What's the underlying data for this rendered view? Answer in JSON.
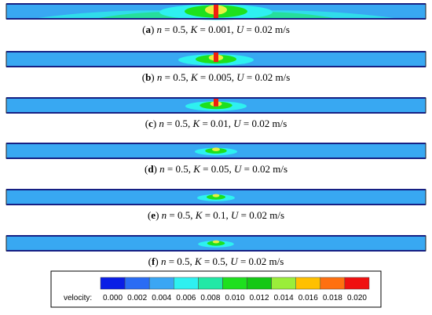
{
  "panels": [
    {
      "caption": [
        {
          "text": "(",
          "style": "normal"
        },
        {
          "text": "a",
          "style": "bold"
        },
        {
          "text": ") ",
          "style": "normal"
        },
        {
          "text": "n",
          "style": "italic"
        },
        {
          "text": " = 0.5, ",
          "style": "normal"
        },
        {
          "text": "K",
          "style": "italic"
        },
        {
          "text": " = 0.001, ",
          "style": "normal"
        },
        {
          "text": "U",
          "style": "italic"
        },
        {
          "text": " = 0.02 m/s",
          "style": "normal"
        }
      ]
    },
    {
      "caption": [
        {
          "text": "(",
          "style": "normal"
        },
        {
          "text": "b",
          "style": "bold"
        },
        {
          "text": ") ",
          "style": "normal"
        },
        {
          "text": "n",
          "style": "italic"
        },
        {
          "text": " = 0.5, ",
          "style": "normal"
        },
        {
          "text": "K",
          "style": "italic"
        },
        {
          "text": " = 0.005, ",
          "style": "normal"
        },
        {
          "text": "U",
          "style": "italic"
        },
        {
          "text": " = 0.02 m/s",
          "style": "normal"
        }
      ]
    },
    {
      "caption": [
        {
          "text": "(",
          "style": "normal"
        },
        {
          "text": "c",
          "style": "bold"
        },
        {
          "text": ") ",
          "style": "normal"
        },
        {
          "text": "n",
          "style": "italic"
        },
        {
          "text": " = 0.5, ",
          "style": "normal"
        },
        {
          "text": "K",
          "style": "italic"
        },
        {
          "text": " = 0.01, ",
          "style": "normal"
        },
        {
          "text": "U",
          "style": "italic"
        },
        {
          "text": " = 0.02 m/s",
          "style": "normal"
        }
      ]
    },
    {
      "caption": [
        {
          "text": "(",
          "style": "normal"
        },
        {
          "text": "d",
          "style": "bold"
        },
        {
          "text": ") ",
          "style": "normal"
        },
        {
          "text": "n",
          "style": "italic"
        },
        {
          "text": " = 0.5, ",
          "style": "normal"
        },
        {
          "text": "K",
          "style": "italic"
        },
        {
          "text": " = 0.05, ",
          "style": "normal"
        },
        {
          "text": "U",
          "style": "italic"
        },
        {
          "text": " = 0.02 m/s",
          "style": "normal"
        }
      ]
    },
    {
      "caption": [
        {
          "text": "(",
          "style": "normal"
        },
        {
          "text": "e",
          "style": "bold"
        },
        {
          "text": ") ",
          "style": "normal"
        },
        {
          "text": "n",
          "style": "italic"
        },
        {
          "text": " = 0.5, ",
          "style": "normal"
        },
        {
          "text": "K",
          "style": "italic"
        },
        {
          "text": " = 0.1, ",
          "style": "normal"
        },
        {
          "text": "U",
          "style": "italic"
        },
        {
          "text": " = 0.02 m/s",
          "style": "normal"
        }
      ]
    },
    {
      "caption": [
        {
          "text": "(",
          "style": "normal"
        },
        {
          "text": "f",
          "style": "bold"
        },
        {
          "text": ") ",
          "style": "normal"
        },
        {
          "text": "n",
          "style": "italic"
        },
        {
          "text": " = 0.5, ",
          "style": "normal"
        },
        {
          "text": "K",
          "style": "italic"
        },
        {
          "text": " = 0.5, ",
          "style": "normal"
        },
        {
          "text": "U",
          "style": "italic"
        },
        {
          "text": " = 0.02 m/s",
          "style": "normal"
        }
      ]
    }
  ],
  "legend": {
    "label": "velocity:",
    "ticks": [
      "0.000",
      "0.002",
      "0.004",
      "0.006",
      "0.008",
      "0.010",
      "0.012",
      "0.014",
      "0.016",
      "0.018",
      "0.020"
    ],
    "colors": [
      "#0a1ee6",
      "#2a6cf4",
      "#3aa6f4",
      "#2ef0f0",
      "#22e8a6",
      "#1ee01e",
      "#14c814",
      "#9aee3a",
      "#ffc000",
      "#ff7010",
      "#f01010"
    ]
  }
}
